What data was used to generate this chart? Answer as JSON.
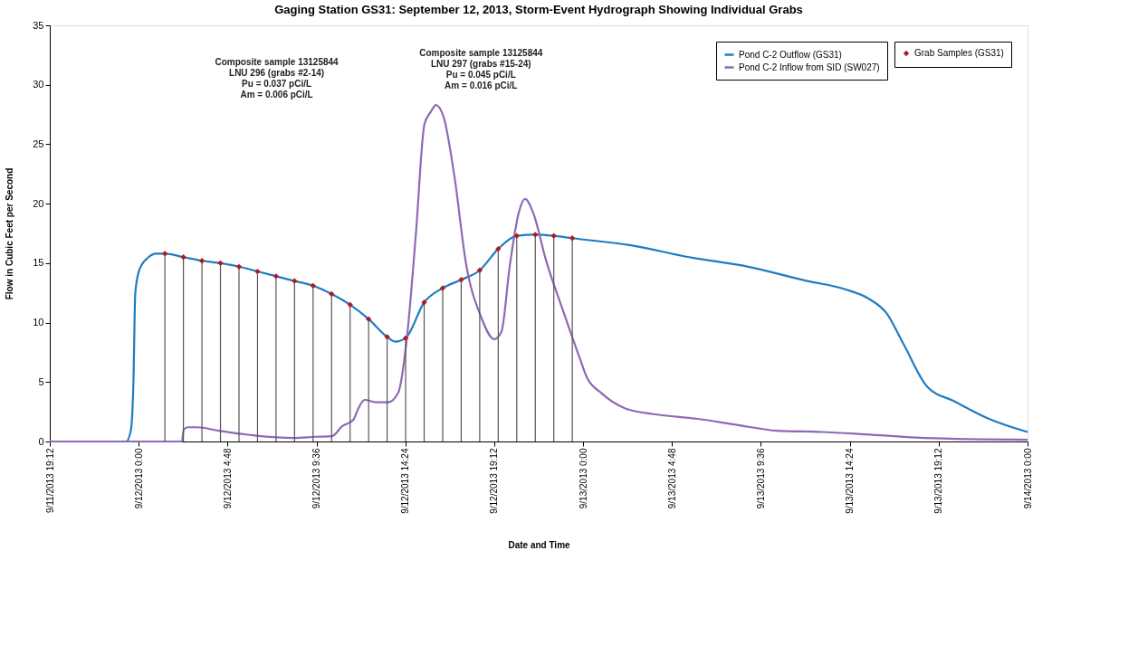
{
  "chart_data": {
    "type": "line",
    "title": "Gaging Station GS31: September 12, 2013, Storm-Event Hydrograph Showing Individual Grabs",
    "xlabel": "Date and Time",
    "ylabel": "Flow in Cubic Feet per Second",
    "xlim": [
      "2013-09-11T19:12",
      "2013-09-14T00:00"
    ],
    "xticks": [
      {
        "value": "2013-09-11T19:12",
        "label": "9/11/2013 19:12"
      },
      {
        "value": "2013-09-12T00:00",
        "label": "9/12/2013 0:00"
      },
      {
        "value": "2013-09-12T04:48",
        "label": "9/12/2013 4:48"
      },
      {
        "value": "2013-09-12T09:36",
        "label": "9/12/2013 9:36"
      },
      {
        "value": "2013-09-12T14:24",
        "label": "9/12/2013 14:24"
      },
      {
        "value": "2013-09-12T19:12",
        "label": "9/12/2013 19:12"
      },
      {
        "value": "2013-09-13T00:00",
        "label": "9/13/2013 0:00"
      },
      {
        "value": "2013-09-13T04:48",
        "label": "9/13/2013 4:48"
      },
      {
        "value": "2013-09-13T09:36",
        "label": "9/13/2013 9:36"
      },
      {
        "value": "2013-09-13T14:24",
        "label": "9/13/2013 14:24"
      },
      {
        "value": "2013-09-13T19:12",
        "label": "9/13/2013 19:12"
      },
      {
        "value": "2013-09-14T00:00",
        "label": "9/14/2013 0:00"
      }
    ],
    "ylim": [
      0,
      35
    ],
    "yticks": [
      0,
      5,
      10,
      15,
      20,
      25,
      30,
      35
    ],
    "grid": false,
    "legend": "top right",
    "annotations": [
      "Composite sample 13125844\nLNU 296 (grabs #2-14)\nPu = 0.037 pCi/L\nAm = 0.006 pCi/L",
      "Composite sample 13125844\nLNU 297 (grabs #15-24)\nPu = 0.045 pCi/L\nAm = 0.016 pCi/L"
    ],
    "series": [
      {
        "name": "Pond C-2 Outflow (GS31)",
        "color": "#1f7cc2",
        "x": [
          "2013-09-11T19:12",
          "2013-09-11T23:20",
          "2013-09-11T23:35",
          "2013-09-11T23:43",
          "2013-09-11T23:49",
          "2013-09-12T00:03",
          "2013-09-12T00:32",
          "2013-09-12T00:55",
          "2013-09-12T01:25",
          "2013-09-12T02:25",
          "2013-09-12T03:25",
          "2013-09-12T04:25",
          "2013-09-12T05:25",
          "2013-09-12T06:25",
          "2013-09-12T07:25",
          "2013-09-12T08:25",
          "2013-09-12T09:25",
          "2013-09-12T10:25",
          "2013-09-12T11:25",
          "2013-09-12T12:25",
          "2013-09-12T13:25",
          "2013-09-12T13:52",
          "2013-09-12T14:25",
          "2013-09-12T15:25",
          "2013-09-12T16:25",
          "2013-09-12T17:25",
          "2013-09-12T18:25",
          "2013-09-12T19:25",
          "2013-09-12T20:25",
          "2013-09-12T21:25",
          "2013-09-12T22:25",
          "2013-09-12T23:25",
          "2013-09-13T02:35",
          "2013-09-13T05:43",
          "2013-09-13T08:55",
          "2013-09-13T12:06",
          "2013-09-13T14:09",
          "2013-09-13T15:26",
          "2013-09-13T16:23",
          "2013-09-13T17:20",
          "2013-09-13T18:35",
          "2013-09-13T20:01",
          "2013-09-13T21:55",
          "2013-09-14T00:00"
        ],
        "values": [
          0,
          0,
          1,
          5,
          12.5,
          14.5,
          15.5,
          15.8,
          15.8,
          15.5,
          15.2,
          15.0,
          14.7,
          14.3,
          13.9,
          13.5,
          13.1,
          12.4,
          11.5,
          10.3,
          8.8,
          8.4,
          8.7,
          11.7,
          12.9,
          13.6,
          14.4,
          16.2,
          17.3,
          17.4,
          17.3,
          17.1,
          16.5,
          15.5,
          14.7,
          13.5,
          12.8,
          12.0,
          10.8,
          8.1,
          4.6,
          3.4,
          1.9,
          0.8
        ]
      },
      {
        "name": "Pond C-2 Inflow from SID (SW027)",
        "color": "#8e69b5",
        "x": [
          "2013-09-11T19:12",
          "2013-09-12T02:20",
          "2013-09-12T02:26",
          "2013-09-12T02:40",
          "2013-09-12T03:09",
          "2013-09-12T04:20",
          "2013-09-12T06:15",
          "2013-09-12T08:23",
          "2013-09-12T09:35",
          "2013-09-12T10:26",
          "2013-09-12T11:00",
          "2013-09-12T11:35",
          "2013-09-12T11:52",
          "2013-09-12T12:12",
          "2013-09-12T12:49",
          "2013-09-12T13:29",
          "2013-09-12T14:01",
          "2013-09-12T14:29",
          "2013-09-12T14:58",
          "2013-09-12T15:26",
          "2013-09-12T15:46",
          "2013-09-12T16:03",
          "2013-09-12T16:29",
          "2013-09-12T17:03",
          "2013-09-12T17:41",
          "2013-09-12T18:29",
          "2013-09-12T19:12",
          "2013-09-12T19:35",
          "2013-09-12T20:03",
          "2013-09-12T20:32",
          "2013-09-12T20:52",
          "2013-09-12T21:20",
          "2013-09-12T21:58",
          "2013-09-12T22:55",
          "2013-09-12T23:52",
          "2013-09-13T00:12",
          "2013-09-13T00:58",
          "2013-09-13T02:15",
          "2013-09-13T03:49",
          "2013-09-13T06:12",
          "2013-09-13T08:18",
          "2013-09-13T10:29",
          "2013-09-13T12:52",
          "2013-09-13T15:15",
          "2013-09-13T18:26",
          "2013-09-14T00:00"
        ],
        "values": [
          0,
          0,
          1.0,
          1.2,
          1.2,
          0.9,
          0.5,
          0.3,
          0.4,
          0.45,
          1.3,
          1.8,
          2.8,
          3.5,
          3.3,
          3.3,
          4.1,
          8.7,
          17.4,
          26.7,
          27.7,
          28.3,
          27.2,
          22.3,
          14.9,
          10.5,
          8.6,
          9.2,
          14.9,
          19.3,
          20.4,
          19.1,
          15.4,
          11.0,
          6.8,
          5.4,
          4.1,
          2.8,
          2.3,
          1.9,
          1.4,
          0.9,
          0.8,
          0.6,
          0.3,
          0.15
        ]
      },
      {
        "name": "Grab Samples (GS31)",
        "color": "#b01c1c",
        "type": "lollipop",
        "marker": "diamond",
        "x": [
          "2013-09-12T01:25",
          "2013-09-12T02:25",
          "2013-09-12T03:25",
          "2013-09-12T04:25",
          "2013-09-12T05:25",
          "2013-09-12T06:25",
          "2013-09-12T07:25",
          "2013-09-12T08:25",
          "2013-09-12T09:25",
          "2013-09-12T10:25",
          "2013-09-12T11:25",
          "2013-09-12T12:25",
          "2013-09-12T13:25",
          "2013-09-12T14:25",
          "2013-09-12T15:25",
          "2013-09-12T16:25",
          "2013-09-12T17:25",
          "2013-09-12T18:25",
          "2013-09-12T19:25",
          "2013-09-12T20:25",
          "2013-09-12T21:25",
          "2013-09-12T22:25",
          "2013-09-12T23:25"
        ],
        "values": [
          15.8,
          15.5,
          15.2,
          15.0,
          14.7,
          14.3,
          13.9,
          13.5,
          13.1,
          12.4,
          11.5,
          10.3,
          8.8,
          8.7,
          11.7,
          12.9,
          13.6,
          14.4,
          16.2,
          17.3,
          17.4,
          17.3,
          17.1
        ]
      }
    ]
  }
}
